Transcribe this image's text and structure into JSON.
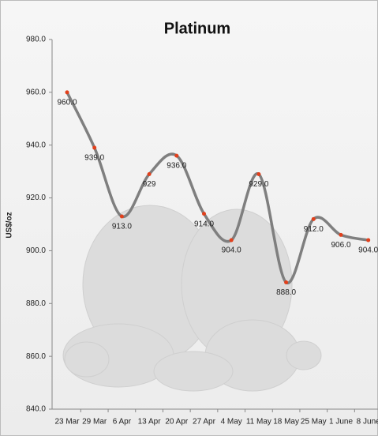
{
  "chart_data": {
    "type": "line",
    "title": "Platinum",
    "y_label": "US$/oz",
    "categories": [
      "23 Mar",
      "29 Mar",
      "6 Apr",
      "13 Apr",
      "20 Apr",
      "27 Apr",
      "4 May",
      "11 May",
      "18 May",
      "25 May",
      "1 June",
      "8 June"
    ],
    "values": [
      960,
      939,
      913,
      929,
      936,
      914,
      904,
      929,
      888,
      912,
      906,
      904
    ],
    "value_labels": [
      "960.0",
      "939.0",
      "913.0",
      "929",
      "936.0",
      "914.0",
      "904.0",
      "929.0",
      "888.0",
      "912.0",
      "906.0",
      "904.0"
    ],
    "color": "#7f7f7f",
    "marker_color": "#e2401c",
    "ylim": [
      840,
      980
    ],
    "yticks": [
      {
        "value": 840,
        "label": "840.0"
      },
      {
        "value": 860,
        "label": "860.0"
      },
      {
        "value": 880,
        "label": "880.0"
      },
      {
        "value": 900,
        "label": "900.0"
      },
      {
        "value": 920,
        "label": "920.0"
      },
      {
        "value": 940,
        "label": "940.0"
      },
      {
        "value": 960,
        "label": "960.0"
      },
      {
        "value": 980,
        "label": "980.0"
      }
    ]
  }
}
